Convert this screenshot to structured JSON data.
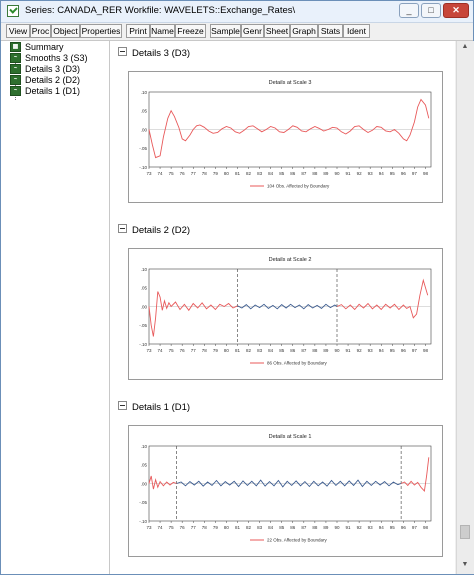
{
  "window": {
    "title": "Series: CANADA_RER    Workfile: WAVELETS::Exchange_Rates\\",
    "buttons": {
      "minimize": "_",
      "maximize": "□",
      "close": "✕"
    }
  },
  "toolbar": [
    "View",
    "Proc",
    "Object",
    "Properties",
    "Print",
    "Name",
    "Freeze",
    "Sample",
    "Genr",
    "Sheet",
    "Graph",
    "Stats",
    "Ident"
  ],
  "tree": [
    {
      "label": "Summary",
      "icon": "table-icon"
    },
    {
      "label": "Smooths 3 (S3)",
      "icon": "graph-icon"
    },
    {
      "label": "Details 3 (D3)",
      "icon": "graph-icon"
    },
    {
      "label": "Details 2 (D2)",
      "icon": "graph-icon"
    },
    {
      "label": "Details 1 (D1)",
      "icon": "graph-icon"
    }
  ],
  "sections": [
    {
      "heading": "Details 3 (D3)"
    },
    {
      "heading": "Details 2 (D2)"
    },
    {
      "heading": "Details 1 (D1)"
    }
  ],
  "chart_data": [
    {
      "type": "line",
      "title": "Details at Scale 3",
      "x_ticks": [
        "73",
        "74",
        "75",
        "76",
        "77",
        "78",
        "79",
        "80",
        "81",
        "82",
        "83",
        "84",
        "85",
        "86",
        "87",
        "88",
        "89",
        "90",
        "91",
        "92",
        "93",
        "94",
        "95",
        "96",
        "97",
        "98"
      ],
      "y_ticks": [
        ".10",
        ".05",
        ".00",
        "-.05",
        "-.10"
      ],
      "ylim": [
        -0.1,
        0.1
      ],
      "boundary_x": [],
      "legend": "104 Obs. Affected by Boundary",
      "series": [
        {
          "role": "boundary-affected",
          "color": "#e8595a",
          "x": [
            73,
            73.3,
            73.6,
            74,
            74.3,
            74.7,
            75,
            75.3,
            75.7,
            76,
            76.3,
            76.7,
            77,
            77.3,
            77.6,
            78,
            78.4,
            78.8,
            79.2,
            79.6,
            80,
            80.4,
            80.8,
            81.2,
            81.6,
            82,
            82.4,
            82.8,
            83.2,
            83.6,
            84,
            84.4,
            84.8,
            85.2,
            85.6,
            86,
            86.4,
            86.8,
            87.2,
            87.6,
            88,
            88.4,
            88.8,
            89.2,
            89.6,
            90,
            90.4,
            90.8,
            91.2,
            91.6,
            92,
            92.4,
            92.8,
            93.2,
            93.6,
            94,
            94.4,
            94.8,
            95.2,
            95.6,
            96,
            96.3,
            96.6,
            97,
            97.3,
            97.6,
            98,
            98.3
          ],
          "y": [
            0.0,
            -0.04,
            -0.075,
            -0.07,
            -0.02,
            0.03,
            0.05,
            0.035,
            0.005,
            -0.025,
            -0.03,
            -0.015,
            0.0,
            0.01,
            0.012,
            0.006,
            -0.004,
            -0.01,
            -0.008,
            0.002,
            0.008,
            0.004,
            -0.006,
            -0.01,
            -0.002,
            0.008,
            0.01,
            0.002,
            -0.006,
            0.0,
            0.008,
            0.004,
            -0.006,
            -0.008,
            0.0,
            0.01,
            0.006,
            -0.004,
            -0.006,
            0.002,
            0.008,
            0.003,
            -0.004,
            0.0,
            0.006,
            0.004,
            -0.006,
            -0.012,
            -0.004,
            0.008,
            0.01,
            0.0,
            -0.008,
            -0.002,
            0.008,
            0.006,
            -0.004,
            -0.006,
            0.0,
            -0.01,
            -0.025,
            -0.03,
            -0.015,
            0.02,
            0.06,
            0.08,
            0.065,
            0.03
          ]
        }
      ]
    },
    {
      "type": "line",
      "title": "Details at Scale 2",
      "x_ticks": [
        "73",
        "74",
        "75",
        "76",
        "77",
        "78",
        "79",
        "80",
        "81",
        "82",
        "83",
        "84",
        "85",
        "86",
        "87",
        "88",
        "89",
        "90",
        "91",
        "92",
        "93",
        "94",
        "95",
        "96",
        "97",
        "98"
      ],
      "y_ticks": [
        ".10",
        ".05",
        ".00",
        "-.05",
        "-.10"
      ],
      "ylim": [
        -0.1,
        0.1
      ],
      "boundary_x": [
        81,
        90
      ],
      "legend": "86 Obs. Affected by Boundary",
      "series": [
        {
          "role": "boundary-affected",
          "color": "#e8595a",
          "x": [
            73,
            73.2,
            73.4,
            73.6,
            73.8,
            74,
            74.2,
            74.4,
            74.6,
            74.8,
            75,
            75.4,
            75.8,
            76.2,
            76.6,
            77,
            77.4,
            77.8,
            78.2,
            78.6,
            79,
            79.4,
            79.8,
            80.2,
            80.6,
            81
          ],
          "y": [
            0.0,
            -0.05,
            -0.08,
            -0.03,
            0.04,
            0.025,
            -0.01,
            0.015,
            -0.005,
            0.01,
            0.0,
            0.012,
            -0.008,
            0.006,
            -0.01,
            0.008,
            -0.004,
            0.01,
            -0.006,
            0.004,
            -0.008,
            0.006,
            0.0,
            0.008,
            -0.004,
            0.002
          ]
        },
        {
          "role": "unaffected",
          "color": "#3b5b8f",
          "x": [
            81,
            81.4,
            81.8,
            82.2,
            82.6,
            83,
            83.4,
            83.8,
            84.2,
            84.6,
            85,
            85.4,
            85.8,
            86.2,
            86.6,
            87,
            87.4,
            87.8,
            88.2,
            88.6,
            89,
            89.4,
            89.8,
            90
          ],
          "y": [
            0.002,
            -0.004,
            0.005,
            -0.006,
            0.004,
            -0.003,
            0.006,
            -0.005,
            0.003,
            -0.006,
            0.005,
            -0.004,
            0.006,
            -0.003,
            0.004,
            -0.006,
            0.005,
            -0.004,
            0.003,
            -0.005,
            0.006,
            -0.003,
            0.004,
            0.0
          ]
        },
        {
          "role": "boundary-affected",
          "color": "#e8595a",
          "x": [
            90,
            90.4,
            90.8,
            91.2,
            91.6,
            92,
            92.4,
            92.8,
            93.2,
            93.6,
            94,
            94.4,
            94.8,
            95.2,
            95.6,
            96,
            96.3,
            96.6,
            96.9,
            97.2,
            97.5,
            97.8,
            98,
            98.2
          ],
          "y": [
            0.0,
            0.005,
            -0.006,
            0.004,
            -0.008,
            0.006,
            -0.004,
            0.008,
            -0.006,
            0.004,
            -0.008,
            0.006,
            -0.004,
            0.006,
            -0.008,
            0.004,
            -0.005,
            0.0,
            -0.03,
            -0.02,
            0.03,
            0.07,
            0.05,
            0.03
          ]
        }
      ]
    },
    {
      "type": "line",
      "title": "Details at Scale 1",
      "x_ticks": [
        "73",
        "74",
        "75",
        "76",
        "77",
        "78",
        "79",
        "80",
        "81",
        "82",
        "83",
        "84",
        "85",
        "86",
        "87",
        "88",
        "89",
        "90",
        "91",
        "92",
        "93",
        "94",
        "95",
        "96",
        "97",
        "98"
      ],
      "y_ticks": [
        ".10",
        ".05",
        ".00",
        "-.05",
        "-.10"
      ],
      "ylim": [
        -0.1,
        0.1
      ],
      "boundary_x": [
        75.5,
        95.8
      ],
      "legend": "22 Obs. Affected by Boundary",
      "series": [
        {
          "role": "boundary-affected",
          "color": "#e8595a",
          "x": [
            73,
            73.2,
            73.4,
            73.6,
            73.8,
            74,
            74.3,
            74.6,
            74.9,
            75.2,
            75.5
          ],
          "y": [
            0.0,
            0.02,
            -0.015,
            0.01,
            -0.01,
            0.005,
            -0.006,
            0.004,
            -0.004,
            0.003,
            0.0
          ]
        },
        {
          "role": "unaffected",
          "color": "#3b5b8f",
          "x": [
            75.5,
            75.9,
            76.3,
            76.7,
            77.1,
            77.5,
            77.9,
            78.3,
            78.7,
            79.1,
            79.5,
            79.9,
            80.3,
            80.7,
            81.1,
            81.5,
            81.9,
            82.3,
            82.7,
            83.1,
            83.5,
            83.9,
            84.3,
            84.7,
            85.1,
            85.5,
            85.9,
            86.3,
            86.7,
            87.1,
            87.5,
            87.9,
            88.3,
            88.7,
            89.1,
            89.5,
            89.9,
            90.3,
            90.7,
            91.1,
            91.5,
            91.9,
            92.3,
            92.7,
            93.1,
            93.5,
            93.9,
            94.3,
            94.7,
            95.1,
            95.5,
            95.8
          ],
          "y": [
            0.0,
            0.004,
            -0.006,
            0.005,
            -0.004,
            0.006,
            -0.007,
            0.004,
            -0.005,
            0.008,
            -0.006,
            0.005,
            -0.004,
            0.006,
            -0.008,
            0.007,
            -0.005,
            0.006,
            -0.006,
            0.009,
            -0.007,
            0.005,
            -0.006,
            0.008,
            -0.009,
            0.006,
            -0.005,
            0.007,
            -0.006,
            0.005,
            -0.008,
            0.006,
            -0.006,
            0.004,
            -0.007,
            0.008,
            -0.005,
            0.006,
            -0.006,
            0.007,
            -0.005,
            0.009,
            -0.008,
            0.006,
            -0.005,
            0.006,
            -0.004,
            0.005,
            -0.006,
            0.004,
            -0.003,
            0.0
          ]
        },
        {
          "role": "boundary-affected",
          "color": "#e8595a",
          "x": [
            95.8,
            96.1,
            96.4,
            96.7,
            97,
            97.3,
            97.6,
            97.9,
            98.1,
            98.3
          ],
          "y": [
            0.0,
            0.004,
            -0.005,
            0.006,
            -0.004,
            0.003,
            -0.01,
            -0.02,
            0.02,
            0.07
          ]
        }
      ]
    }
  ]
}
